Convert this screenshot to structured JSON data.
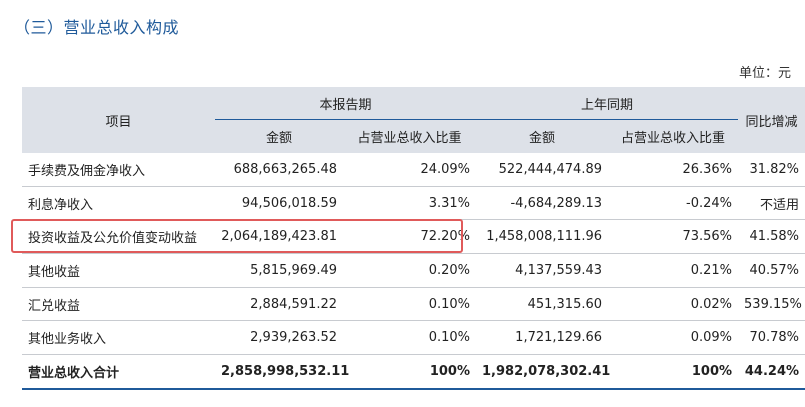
{
  "section_title": "（三）营业总收入构成",
  "unit": "单位：元",
  "headers": {
    "item": "项目",
    "current_period": "本报告期",
    "prior_period": "上年同期",
    "yoy_change": "同比增减",
    "amount": "金额",
    "share": "占营业总收入比重"
  },
  "rows": [
    {
      "item": "手续费及佣金净收入",
      "cur_amount": "688,663,265.48",
      "cur_share": "24.09%",
      "prev_amount": "522,444,474.89",
      "prev_share": "26.36%",
      "yoy": "31.82%"
    },
    {
      "item": "利息净收入",
      "cur_amount": "94,506,018.59",
      "cur_share": "3.31%",
      "prev_amount": "-4,684,289.13",
      "prev_share": "-0.24%",
      "yoy": "不适用"
    },
    {
      "item": "投资收益及公允价值变动收益",
      "cur_amount": "2,064,189,423.81",
      "cur_share": "72.20%",
      "prev_amount": "1,458,008,111.96",
      "prev_share": "73.56%",
      "yoy": "41.58%"
    },
    {
      "item": "其他收益",
      "cur_amount": "5,815,969.49",
      "cur_share": "0.20%",
      "prev_amount": "4,137,559.43",
      "prev_share": "0.21%",
      "yoy": "40.57%"
    },
    {
      "item": "汇兑收益",
      "cur_amount": "2,884,591.22",
      "cur_share": "0.10%",
      "prev_amount": "451,315.60",
      "prev_share": "0.02%",
      "yoy": "539.15%"
    },
    {
      "item": "其他业务收入",
      "cur_amount": "2,939,263.52",
      "cur_share": "0.10%",
      "prev_amount": "1,721,129.66",
      "prev_share": "0.09%",
      "yoy": "70.78%"
    },
    {
      "item": "营业总收入合计",
      "cur_amount": "2,858,998,532.11",
      "cur_share": "100%",
      "prev_amount": "1,982,078,302.41",
      "prev_share": "100%",
      "yoy": "44.24%"
    }
  ],
  "colors": {
    "title_blue": "#1f5a9a",
    "header_bg": "#dde1e8",
    "highlight_red": "#e05a5a"
  }
}
